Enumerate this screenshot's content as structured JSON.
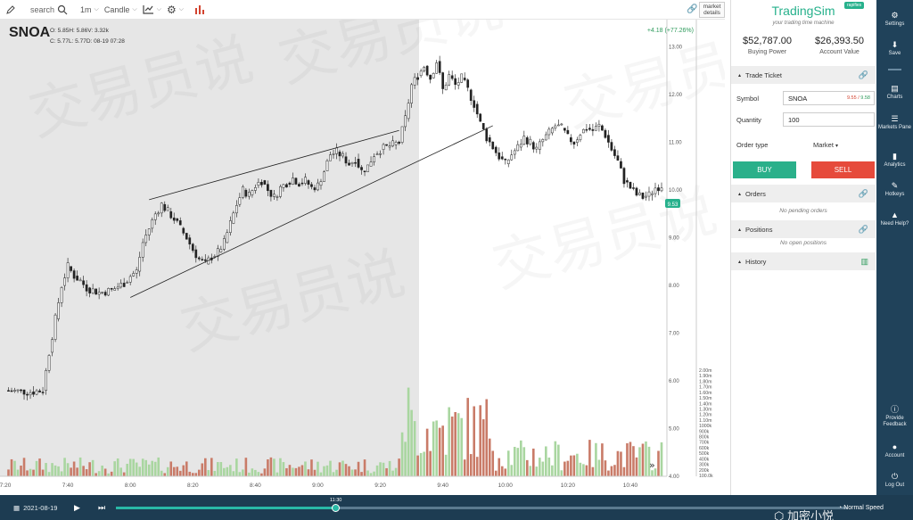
{
  "toolbar": {
    "search_placeholder": "search",
    "interval": "1m",
    "chart_type": "Candle",
    "market_details": "market details"
  },
  "instrument": {
    "symbol": "SNOA",
    "ohlc_line1": "O: 5.85H: 5.86V: 3.32k",
    "ohlc_line2": "C: 5.77L: 5.77D: 08-19 07:28",
    "change": "+4.18 (+77.26%)",
    "last_price": "9.53"
  },
  "y_axis": {
    "ticks": [
      "13.00",
      "12.00",
      "11.00",
      "10.00",
      "9.00",
      "8.00",
      "7.00",
      "6.00",
      "5.00",
      "4.00"
    ]
  },
  "volume_axis": {
    "ticks": [
      "2.00m",
      "1.90m",
      "1.80m",
      "1.70m",
      "1.60m",
      "1.50m",
      "1.40m",
      "1.30m",
      "1.20m",
      "1.10m",
      "1000k",
      "900k",
      "800k",
      "700k",
      "600k",
      "500k",
      "400k",
      "300k",
      "200k",
      "100.0k"
    ]
  },
  "x_axis": {
    "ticks": [
      "7:20",
      "7:40",
      "8:00",
      "8:20",
      "8:40",
      "9:00",
      "9:20",
      "9:40",
      "10:00",
      "10:20",
      "10:40"
    ]
  },
  "watermark_bg": "交易员说",
  "panel": {
    "brand": "TradingSim",
    "brand_tag": "rapifies",
    "tagline": "your trading time machine",
    "buying_power_value": "$52,787.00",
    "buying_power_label": "Buying Power",
    "account_value_value": "$26,393.50",
    "account_value_label": "Account Value",
    "trade_ticket_label": "Trade Ticket",
    "symbol_label": "Symbol",
    "symbol_value": "SNOA",
    "bid": "9.55",
    "ask": "9.58",
    "quantity_label": "Quantity",
    "quantity_value": "100",
    "order_type_label": "Order type",
    "order_type_value": "Market",
    "buy_label": "BUY",
    "sell_label": "SELL",
    "orders_label": "Orders",
    "orders_empty": "No pending orders",
    "positions_label": "Positions",
    "positions_empty": "No open positions",
    "history_label": "History"
  },
  "sidebar": {
    "items": [
      {
        "label": "Settings",
        "icon": "gear-icon"
      },
      {
        "label": "Save",
        "icon": "download-icon"
      },
      {
        "label": "Charts",
        "icon": "chart-icon"
      },
      {
        "label": "Markets Pane",
        "icon": "list-icon"
      },
      {
        "label": "Analytics",
        "icon": "bar-chart-icon"
      },
      {
        "label": "Hotkeys",
        "icon": "edit-icon"
      },
      {
        "label": "Need Help?",
        "icon": "graduation-cap-icon"
      },
      {
        "label": "Provide Feedback",
        "icon": "info-icon"
      },
      {
        "label": "Account",
        "icon": "user-icon"
      },
      {
        "label": "Log Out",
        "icon": "power-icon"
      }
    ]
  },
  "bottom": {
    "date": "2021-08-19",
    "current_time": "11:30",
    "speed": "Normal Speed",
    "progress": 0.3
  },
  "overlay_watermark": "加密小悦",
  "colors": {
    "up": "#2e9b5c",
    "down": "#d2432f",
    "vol_up": "#a9d6a0",
    "vol_down": "#c97b68",
    "brand": "#27b18c",
    "sidebar": "#20425a",
    "premarket_shade": "#e6e6e6"
  },
  "chart_data": {
    "type": "candlestick",
    "y_range": [
      4.0,
      13.2
    ],
    "x_range": [
      "7:20",
      "10:50"
    ],
    "close_path": [
      [
        "7:20",
        5.8
      ],
      [
        "7:28",
        5.77
      ],
      [
        "7:32",
        5.8
      ],
      [
        "7:34",
        6.6
      ],
      [
        "7:36",
        7.3
      ],
      [
        "7:38",
        8.0
      ],
      [
        "7:40",
        8.4
      ],
      [
        "7:42",
        8.2
      ],
      [
        "7:44",
        8.1
      ],
      [
        "7:46",
        7.95
      ],
      [
        "7:50",
        7.85
      ],
      [
        "7:54",
        7.9
      ],
      [
        "7:58",
        8.05
      ],
      [
        "8:00",
        8.2
      ],
      [
        "8:02",
        8.3
      ],
      [
        "8:04",
        8.9
      ],
      [
        "8:06",
        9.2
      ],
      [
        "8:08",
        9.5
      ],
      [
        "8:10",
        9.7
      ],
      [
        "8:12",
        9.55
      ],
      [
        "8:14",
        9.4
      ],
      [
        "8:16",
        9.2
      ],
      [
        "8:18",
        9.0
      ],
      [
        "8:20",
        8.75
      ],
      [
        "8:22",
        8.55
      ],
      [
        "8:24",
        8.45
      ],
      [
        "8:26",
        8.6
      ],
      [
        "8:28",
        8.7
      ],
      [
        "8:30",
        8.9
      ],
      [
        "8:32",
        9.3
      ],
      [
        "8:34",
        9.7
      ],
      [
        "8:36",
        10.0
      ],
      [
        "8:38",
        9.9
      ],
      [
        "8:40",
        10.1
      ],
      [
        "8:42",
        10.2
      ],
      [
        "8:44",
        10.0
      ],
      [
        "8:46",
        9.85
      ],
      [
        "8:48",
        10.05
      ],
      [
        "8:50",
        10.15
      ],
      [
        "8:52",
        10.25
      ],
      [
        "8:54",
        10.15
      ],
      [
        "8:56",
        10.2
      ],
      [
        "8:58",
        10.05
      ],
      [
        "9:00",
        10.1
      ],
      [
        "9:02",
        10.4
      ],
      [
        "9:04",
        10.75
      ],
      [
        "9:06",
        10.8
      ],
      [
        "9:08",
        10.7
      ],
      [
        "9:10",
        10.55
      ],
      [
        "9:12",
        10.65
      ],
      [
        "9:14",
        10.4
      ],
      [
        "9:16",
        10.5
      ],
      [
        "9:18",
        10.75
      ],
      [
        "9:20",
        10.85
      ],
      [
        "9:22",
        10.9
      ],
      [
        "9:24",
        10.95
      ],
      [
        "9:26",
        11.0
      ],
      [
        "9:28",
        11.5
      ],
      [
        "9:30",
        12.2
      ],
      [
        "9:32",
        12.4
      ],
      [
        "9:34",
        12.6
      ],
      [
        "9:36",
        12.35
      ],
      [
        "9:38",
        12.7
      ],
      [
        "9:40",
        12.1
      ],
      [
        "9:42",
        12.4
      ],
      [
        "9:44",
        12.2
      ],
      [
        "9:46",
        12.35
      ],
      [
        "9:48",
        12.1
      ],
      [
        "9:50",
        11.8
      ],
      [
        "9:52",
        11.4
      ],
      [
        "9:54",
        11.1
      ],
      [
        "9:56",
        10.9
      ],
      [
        "9:58",
        10.7
      ],
      [
        "10:00",
        10.55
      ],
      [
        "10:02",
        10.75
      ],
      [
        "10:04",
        10.9
      ],
      [
        "10:06",
        11.1
      ],
      [
        "10:08",
        11.0
      ],
      [
        "10:10",
        10.85
      ],
      [
        "10:12",
        11.05
      ],
      [
        "10:14",
        11.2
      ],
      [
        "10:16",
        11.35
      ],
      [
        "10:18",
        11.3
      ],
      [
        "10:20",
        11.1
      ],
      [
        "10:22",
        11.0
      ],
      [
        "10:24",
        11.2
      ],
      [
        "10:26",
        11.3
      ],
      [
        "10:28",
        11.25
      ],
      [
        "10:30",
        11.35
      ],
      [
        "10:32",
        11.15
      ],
      [
        "10:34",
        10.85
      ],
      [
        "10:36",
        10.6
      ],
      [
        "10:38",
        10.2
      ],
      [
        "10:40",
        10.05
      ],
      [
        "10:42",
        9.9
      ],
      [
        "10:44",
        9.85
      ],
      [
        "10:46",
        9.9
      ],
      [
        "10:48",
        10.05
      ],
      [
        "10:50",
        10.1
      ]
    ]
  }
}
